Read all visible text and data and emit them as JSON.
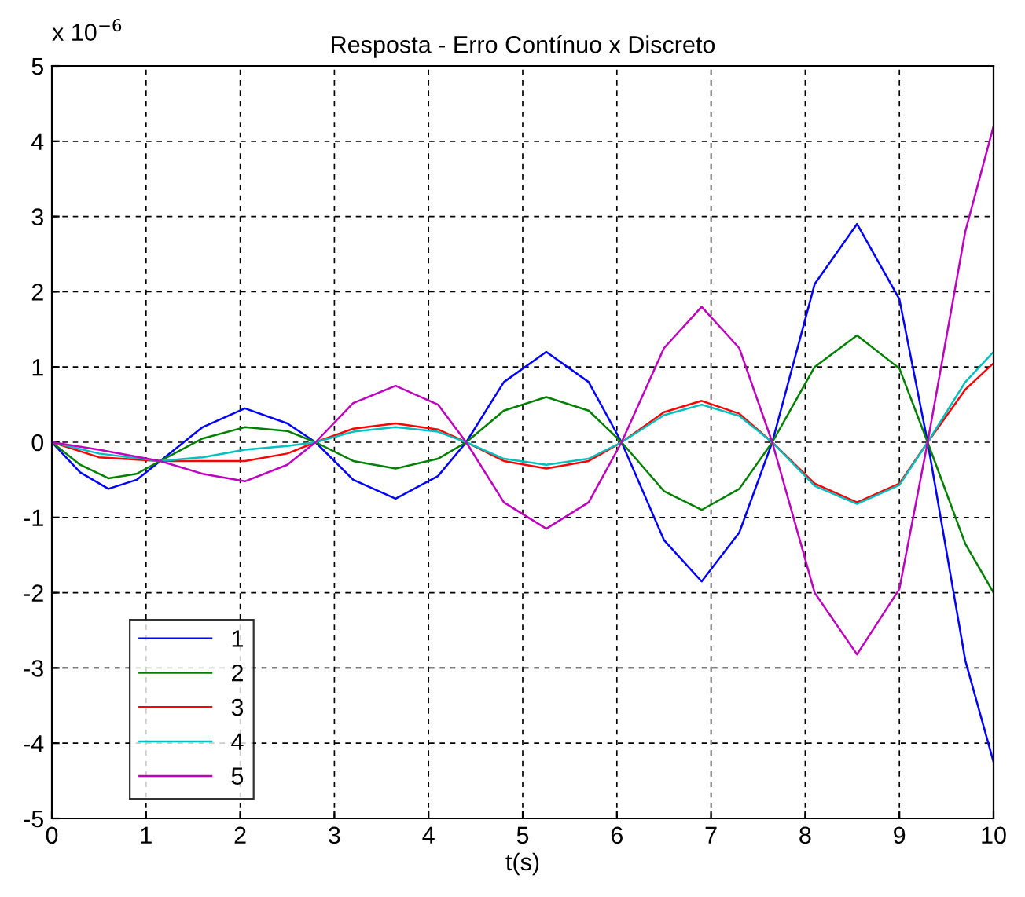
{
  "chart_data": {
    "type": "line",
    "title": "Resposta - Erro Contínuo x Discreto",
    "xlabel": "t(s)",
    "annotations": [
      "x 10$^{−6}$"
    ],
    "xlim": [
      0,
      10
    ],
    "ylim": [
      -5,
      5
    ],
    "xticks": [
      0,
      1,
      2,
      3,
      4,
      5,
      6,
      7,
      8,
      9,
      10
    ],
    "yticks": [
      -5,
      -4,
      -3,
      -2,
      -1,
      0,
      1,
      2,
      3,
      4,
      5
    ],
    "grid": true,
    "legend": "bottom left",
    "line_style": "solid",
    "marker": "none",
    "series": [
      {
        "name": "1",
        "color": "#0000ff",
        "x": [
          0,
          0.3,
          0.6,
          0.9,
          1.15,
          1.6,
          2.05,
          2.5,
          2.8,
          3.2,
          3.65,
          4.1,
          4.4,
          4.8,
          5.25,
          5.7,
          6.05,
          6.5,
          6.9,
          7.3,
          7.65,
          8.1,
          8.55,
          9.0,
          9.3,
          9.7,
          10
        ],
        "values": [
          0,
          -0.4,
          -0.62,
          -0.5,
          -0.25,
          0.2,
          0.45,
          0.25,
          0,
          -0.5,
          -0.75,
          -0.45,
          0,
          0.8,
          1.2,
          0.8,
          0,
          -1.3,
          -1.85,
          -1.2,
          0,
          2.1,
          2.9,
          1.9,
          0,
          -2.9,
          -4.25
        ]
      },
      {
        "name": "2",
        "color": "#008000",
        "x": [
          0,
          0.3,
          0.6,
          0.9,
          1.15,
          1.6,
          2.05,
          2.5,
          2.8,
          3.2,
          3.65,
          4.1,
          4.4,
          4.8,
          5.25,
          5.7,
          6.05,
          6.5,
          6.9,
          7.3,
          7.65,
          8.1,
          8.55,
          9.0,
          9.3,
          9.7,
          10
        ],
        "values": [
          0,
          -0.3,
          -0.48,
          -0.42,
          -0.25,
          0.05,
          0.2,
          0.15,
          0,
          -0.25,
          -0.35,
          -0.22,
          0,
          0.42,
          0.6,
          0.42,
          0,
          -0.65,
          -0.9,
          -0.62,
          0,
          1.0,
          1.42,
          0.98,
          0,
          -1.35,
          -2.0
        ]
      },
      {
        "name": "3",
        "color": "#ff0000",
        "x": [
          0,
          0.5,
          1.15,
          1.6,
          2.05,
          2.5,
          2.8,
          3.2,
          3.65,
          4.1,
          4.4,
          4.8,
          5.25,
          5.7,
          6.05,
          6.5,
          6.9,
          7.3,
          7.65,
          8.1,
          8.55,
          9.0,
          9.3,
          9.7,
          10
        ],
        "values": [
          0,
          -0.2,
          -0.25,
          -0.25,
          -0.25,
          -0.15,
          0,
          0.18,
          0.25,
          0.17,
          0,
          -0.25,
          -0.35,
          -0.25,
          0,
          0.4,
          0.55,
          0.38,
          0,
          -0.55,
          -0.8,
          -0.55,
          0,
          0.7,
          1.05
        ]
      },
      {
        "name": "4",
        "color": "#00bfbf",
        "x": [
          0,
          0.5,
          1.15,
          1.6,
          2.05,
          2.5,
          2.8,
          3.2,
          3.65,
          4.1,
          4.4,
          4.8,
          5.25,
          5.7,
          6.05,
          6.5,
          6.9,
          7.3,
          7.65,
          8.1,
          8.55,
          9.0,
          9.3,
          9.7,
          10
        ],
        "values": [
          0,
          -0.15,
          -0.25,
          -0.2,
          -0.1,
          -0.05,
          0,
          0.14,
          0.2,
          0.14,
          0,
          -0.22,
          -0.3,
          -0.22,
          0,
          0.36,
          0.5,
          0.35,
          0,
          -0.58,
          -0.82,
          -0.57,
          0,
          0.8,
          1.2
        ]
      },
      {
        "name": "5",
        "color": "#bf00bf",
        "x": [
          0,
          0.5,
          1.15,
          1.6,
          2.05,
          2.5,
          2.8,
          3.2,
          3.65,
          4.1,
          4.4,
          4.8,
          5.25,
          5.7,
          6.05,
          6.5,
          6.9,
          7.3,
          7.65,
          8.1,
          8.55,
          9.0,
          9.3,
          9.7,
          10
        ],
        "values": [
          0,
          -0.1,
          -0.25,
          -0.42,
          -0.52,
          -0.3,
          0,
          0.52,
          0.75,
          0.5,
          0,
          -0.8,
          -1.15,
          -0.8,
          0,
          1.25,
          1.8,
          1.25,
          0,
          -2.0,
          -2.82,
          -1.95,
          0,
          2.8,
          4.2
        ]
      }
    ]
  }
}
